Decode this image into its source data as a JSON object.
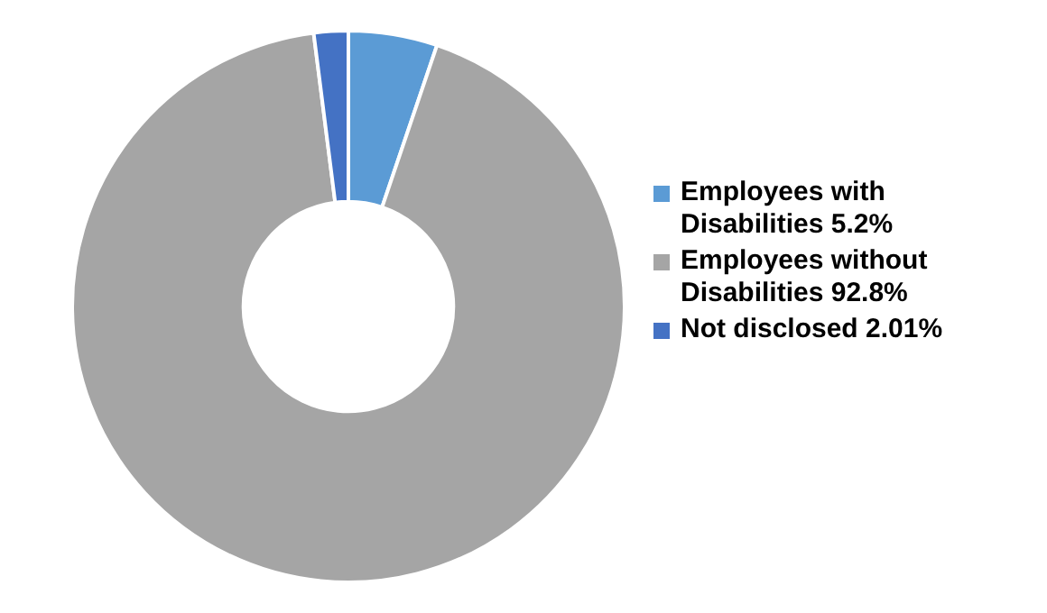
{
  "chart_data": {
    "type": "donut",
    "categories": [
      "Employees with Disabilities 5.2%",
      "Employees without Disabilities 92.8%",
      "Not disclosed 2.01%"
    ],
    "values": [
      5.2,
      92.8,
      2.01
    ],
    "colors": [
      "#5b9bd5",
      "#a5a5a5",
      "#4472c4"
    ],
    "legend": "right"
  }
}
